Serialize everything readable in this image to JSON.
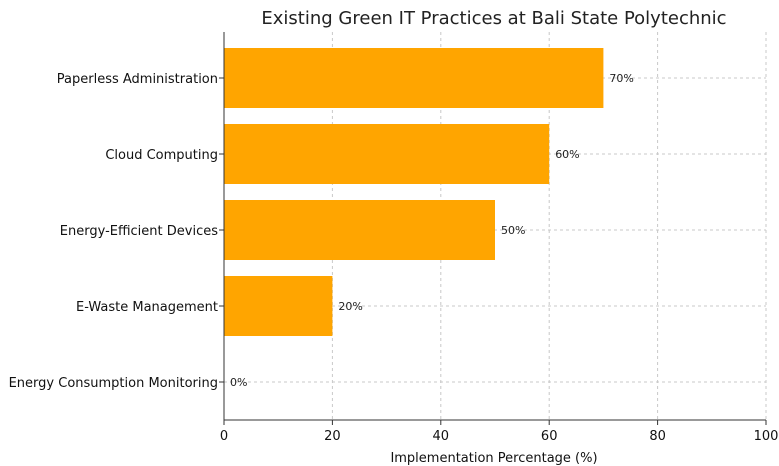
{
  "chart_data": {
    "type": "bar",
    "orientation": "horizontal",
    "title": "Existing Green IT Practices at Bali State Polytechnic",
    "xlabel": "Implementation Percentage (%)",
    "ylabel": "",
    "categories": [
      "Paperless Administration",
      "Cloud Computing",
      "Energy-Efficient Devices",
      "E-Waste Management",
      "Energy Consumption Monitoring"
    ],
    "values": [
      70,
      60,
      50,
      20,
      0
    ],
    "value_labels": [
      "70%",
      "60%",
      "50%",
      "20%",
      "0%"
    ],
    "xlim": [
      0,
      100
    ],
    "x_ticks": [
      0,
      20,
      40,
      60,
      80,
      100
    ],
    "x_tick_labels": [
      "0",
      "20",
      "40",
      "60",
      "80",
      "100"
    ],
    "grid": true,
    "bar_color": "#FFA500"
  }
}
